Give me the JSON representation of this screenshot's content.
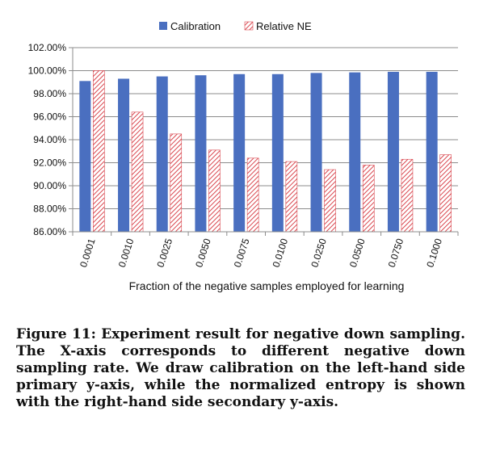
{
  "chart_data": {
    "type": "bar",
    "categories": [
      "0.0001",
      "0.0010",
      "0.0025",
      "0.0050",
      "0.0075",
      "0.0100",
      "0.0250",
      "0.0500",
      "0.0750",
      "0.1000"
    ],
    "series": [
      {
        "name": "Calibration",
        "values": [
          99.1,
          99.3,
          99.5,
          99.6,
          99.7,
          99.7,
          99.8,
          99.85,
          99.9,
          99.9
        ],
        "color": "#4a6fc0",
        "fill": "solid"
      },
      {
        "name": "Relative NE",
        "values": [
          100.0,
          96.4,
          94.5,
          93.1,
          92.4,
          92.1,
          91.4,
          91.8,
          92.3,
          92.7
        ],
        "color": "#d9474f",
        "fill": "hatched"
      }
    ],
    "yticks": [
      "86.00%",
      "88.00%",
      "90.00%",
      "92.00%",
      "94.00%",
      "96.00%",
      "98.00%",
      "100.00%",
      "102.00%"
    ],
    "ylim": [
      86,
      102
    ],
    "xlabel": "Fraction of the negative samples employed for learning",
    "ylabel": "",
    "legend_position": "top-center",
    "grid": true
  },
  "caption": "Figure 11: Experiment result for negative down sampling. The X-axis corresponds to different negative down sampling rate. We draw calibration on the left-hand side primary y-axis, while the normalized entropy is shown with the right-hand side secondary y-axis."
}
